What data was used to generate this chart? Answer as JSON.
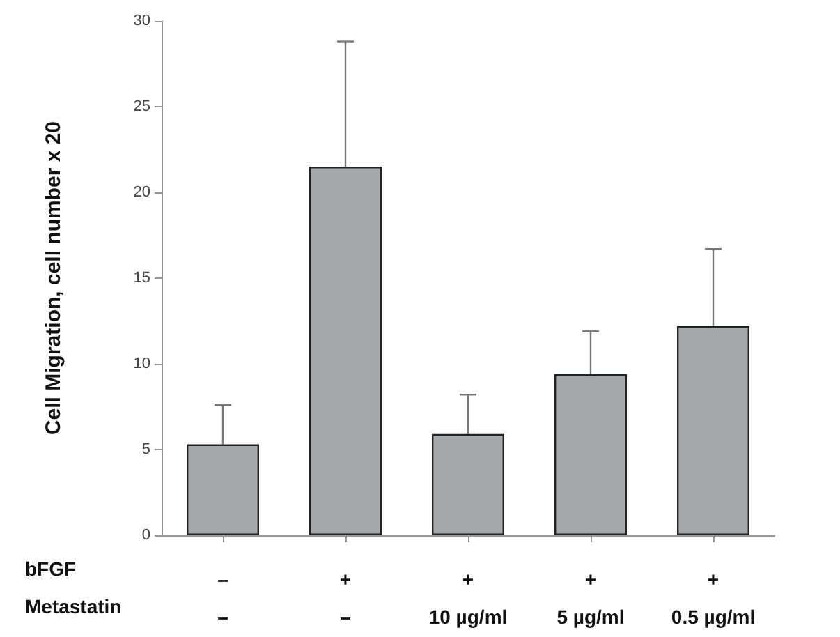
{
  "chart_data": {
    "type": "bar",
    "ylabel": "Cell Migration, cell number x 20",
    "categories": [
      "–\n–",
      "+\n–",
      "+\n10 µg/ml",
      "+\n5 µg/ml",
      "+\n0.5 µg/ml"
    ],
    "values": [
      5.3,
      21.5,
      5.9,
      9.4,
      12.2
    ],
    "errors": [
      [
        5.3,
        7.6
      ],
      [
        21.5,
        28.8
      ],
      [
        5.9,
        8.2
      ],
      [
        9.4,
        11.9
      ],
      [
        12.2,
        16.7
      ]
    ],
    "color": "#a6a8aa",
    "ylim": [
      0,
      30
    ],
    "yticks": [
      0,
      5,
      10,
      15,
      20,
      25,
      30
    ],
    "grid": false,
    "annotations": [
      "bFGF",
      "Metastatin"
    ]
  }
}
